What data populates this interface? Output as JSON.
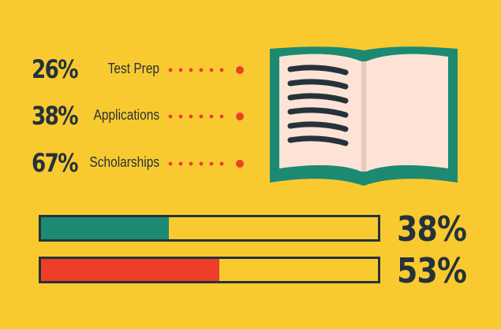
{
  "stats": [
    {
      "percent": "26%",
      "label": "Test Prep"
    },
    {
      "percent": "38%",
      "label": "Applications"
    },
    {
      "percent": "67%",
      "label": "Scholarships"
    }
  ],
  "bars": [
    {
      "percent_label": "38%",
      "value": 0.38,
      "fill_color": "#1C8A72"
    },
    {
      "percent_label": "53%",
      "value": 0.53,
      "fill_color": "#EC3E28"
    }
  ],
  "colors": {
    "background": "#F9CA30",
    "dark": "#26323A",
    "dots": "#EC3E28",
    "book_cover": "#1C8A72",
    "book_page": "#FCE3D6"
  },
  "icons": {
    "book": "open-book-icon"
  }
}
